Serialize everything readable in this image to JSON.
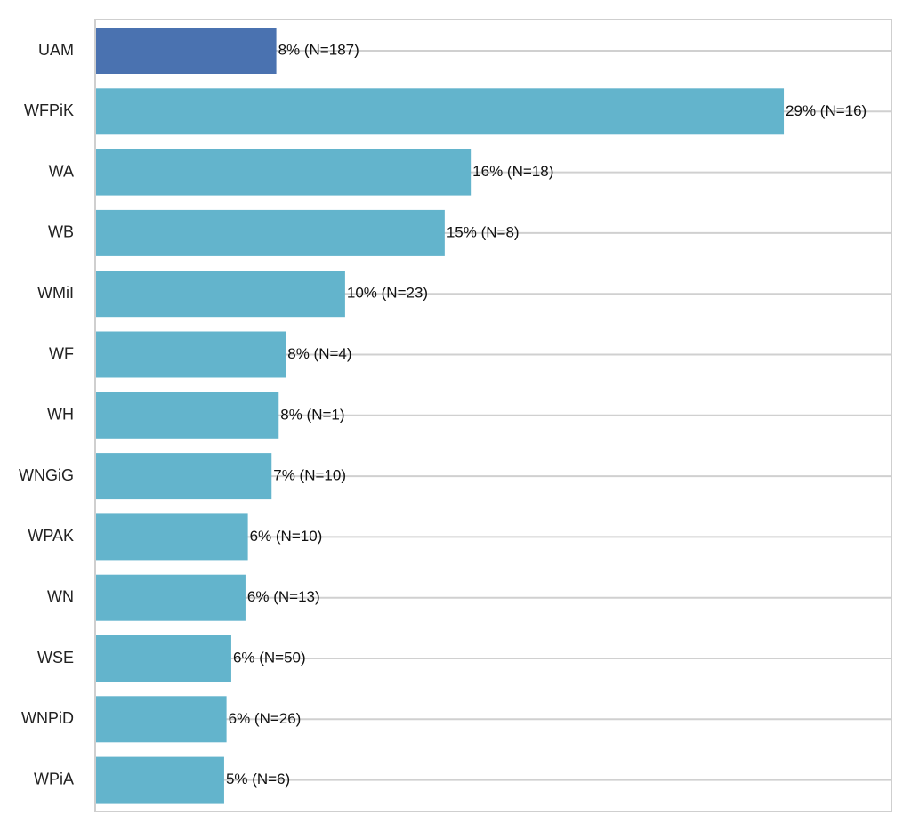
{
  "chart_data": {
    "type": "bar",
    "orientation": "horizontal",
    "categories": [
      "UAM",
      "WFPiK",
      "WA",
      "WB",
      "WMiI",
      "WF",
      "WH",
      "WNGiG",
      "WPAK",
      "WN",
      "WSE",
      "WNPiD",
      "WPiA"
    ],
    "values": [
      8,
      29,
      16,
      15,
      10,
      8,
      8,
      7,
      6,
      6,
      6,
      6,
      5
    ],
    "plotted_values": [
      7.6,
      29.0,
      15.8,
      14.7,
      10.5,
      8.0,
      7.7,
      7.4,
      6.4,
      6.3,
      5.7,
      5.5,
      5.4
    ],
    "n_values": [
      187,
      16,
      18,
      8,
      23,
      4,
      1,
      10,
      10,
      13,
      50,
      26,
      6
    ],
    "data_labels": [
      "8% (N=187)",
      "29% (N=16)",
      "16% (N=18)",
      "15% (N=8)",
      "10% (N=23)",
      "8% (N=4)",
      "8% (N=1)",
      "7% (N=10)",
      "6% (N=10)",
      "6% (N=13)",
      "6% (N=50)",
      "6% (N=26)",
      "5% (N=6)"
    ],
    "unit": "%",
    "xlim": [
      0,
      33.5
    ],
    "grid": "horizontal lines",
    "highlight_category": "UAM",
    "colors": {
      "highlight": "#4a72b0",
      "default": "#63b4cc",
      "grid": "#d0d0d0",
      "frame": "#cfcfcf"
    },
    "title": "",
    "xlabel": "",
    "ylabel": ""
  }
}
